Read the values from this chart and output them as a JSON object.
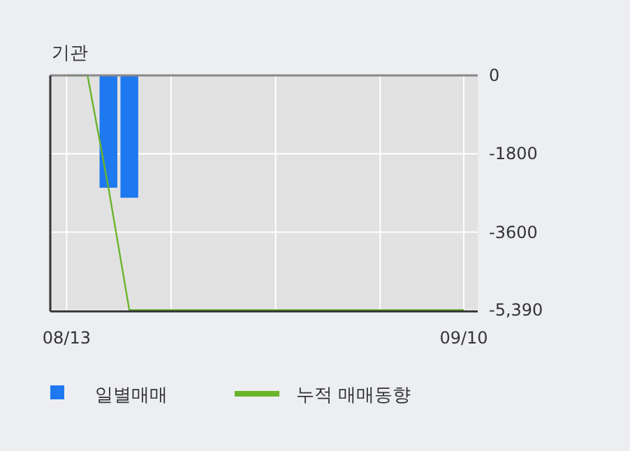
{
  "chart_data": {
    "type": "bar",
    "title": "기관",
    "categories": [
      "08/13",
      null,
      null,
      null,
      null,
      null,
      null,
      null,
      null,
      null,
      null,
      null,
      null,
      null,
      null,
      null,
      null,
      null,
      null,
      "09/10"
    ],
    "series": [
      {
        "name": "일별매매",
        "color": "#1e78f0",
        "values": [
          null,
          null,
          -2580,
          -2810,
          null,
          null,
          null,
          null,
          null,
          null,
          null,
          null,
          null,
          null,
          null,
          null,
          null,
          null,
          null,
          null
        ]
      },
      {
        "name": "누적 매매동향",
        "type": "line",
        "color": "#6ab42c",
        "values": [
          0,
          0,
          -2580,
          -5390,
          -5390,
          -5390,
          -5390,
          -5390,
          -5390,
          -5390,
          -5390,
          -5390,
          -5390,
          -5390,
          -5390,
          -5390,
          -5390,
          -5390,
          -5390,
          -5390
        ]
      }
    ],
    "ylim": [
      -5420,
      0
    ],
    "yticks": [
      0,
      -1800,
      -3600,
      {
        "value": -5390,
        "label": "-5,390"
      }
    ],
    "grid": true,
    "legend": "bottom"
  }
}
